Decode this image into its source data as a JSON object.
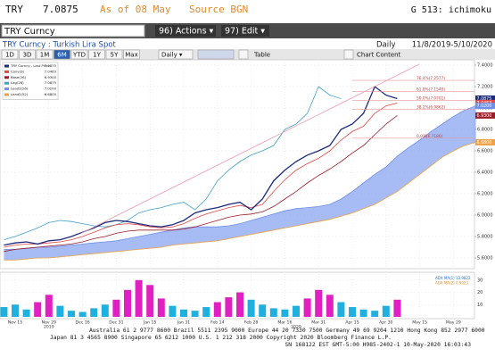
{
  "header": {
    "ticker": "TRY",
    "price": "7.0875",
    "asof": "As of 08 May",
    "source": "Source BGN",
    "function": "G 513: ichimoku"
  },
  "toolbar": {
    "security": "TRY Curncy",
    "actions": "96) Actions ▾",
    "edit": "97) Edit ▾",
    "description": "TRY Curncy : Turkish Lira Spot",
    "frequency": "Daily",
    "range": "11/8/2019-5/10/2020",
    "periods": [
      "1D",
      "3D",
      "1M",
      "6M",
      "YTD",
      "1Y",
      "5Y",
      "Max"
    ],
    "selected": 3,
    "interval": "Daily ▾",
    "table": "Table",
    "content": "Chart Content"
  },
  "chart_data": [
    {
      "type": "line",
      "categories": [
        null,
        "Nov 15",
        null,
        null,
        "Nov 29",
        null,
        null,
        "Dec 16",
        null,
        null,
        "Dec 31",
        null,
        null,
        "Jan 15",
        null,
        null,
        "Jan 31",
        null,
        null,
        "Feb 14",
        null,
        null,
        "Feb 28",
        null,
        null,
        "Mar 16",
        null,
        null,
        "Mar 31",
        null,
        null,
        "Apr 15",
        null,
        null,
        "Apr 30",
        null,
        null,
        "May 15",
        null,
        null,
        "May 29",
        null,
        null
      ],
      "years": [
        "2019",
        "2020"
      ],
      "ylim": [
        5.5,
        7.45
      ],
      "yticks": [
        {
          "value": 5.6,
          "label": "5.6000"
        },
        {
          "value": 5.8,
          "label": "5.8000"
        },
        {
          "value": 6,
          "label": "6.0000"
        },
        {
          "value": 6.2,
          "label": "6.2000"
        },
        {
          "value": 6.4,
          "label": "6.4000"
        },
        {
          "value": 6.6,
          "label": "6.6000"
        },
        {
          "value": 6.8,
          "label": "6.8000"
        },
        {
          "value": 7,
          "label": "7.0000"
        },
        {
          "value": 7.2,
          "label": "7.2000"
        },
        {
          "value": 7.4,
          "label": "7.4000"
        }
      ],
      "grid": true,
      "series": [
        {
          "name": "TRY Curncy - Last Price",
          "last_label": "7.0875",
          "color": "#1c2a7a",
          "values": [
            5.72,
            5.74,
            5.75,
            5.73,
            5.76,
            5.77,
            5.8,
            5.84,
            5.88,
            5.93,
            5.95,
            5.94,
            5.92,
            5.9,
            5.89,
            5.91,
            5.95,
            6.02,
            6.05,
            6.07,
            6.1,
            6.12,
            6.05,
            6.15,
            6.32,
            6.42,
            6.5,
            6.56,
            6.6,
            6.65,
            6.8,
            6.85,
            6.95,
            7.2,
            7.12,
            7.0875,
            null,
            null,
            null,
            null,
            null,
            null,
            null
          ]
        },
        {
          "name": "Conv(9)",
          "last_label": "7.0463",
          "color": "#e04848",
          "values": [
            5.7,
            5.72,
            5.73,
            5.73,
            5.74,
            5.75,
            5.77,
            5.8,
            5.84,
            5.88,
            5.91,
            5.92,
            5.91,
            5.89,
            5.88,
            5.89,
            5.92,
            5.97,
            6.01,
            6.04,
            6.07,
            6.09,
            6.07,
            6.1,
            6.22,
            6.33,
            6.42,
            6.48,
            6.53,
            6.6,
            6.7,
            6.78,
            6.83,
            6.95,
            7.02,
            7.0463,
            null,
            null,
            null,
            null,
            null,
            null,
            null
          ]
        },
        {
          "name": "Base(26)",
          "last_label": "6.9300",
          "color": "#9c1c28",
          "values": [
            5.66,
            5.68,
            5.69,
            5.7,
            5.71,
            5.72,
            5.73,
            5.75,
            5.78,
            5.8,
            5.83,
            5.85,
            5.86,
            5.86,
            5.86,
            5.86,
            5.87,
            5.89,
            5.92,
            5.95,
            5.98,
            6.0,
            6.01,
            6.03,
            6.08,
            6.15,
            6.22,
            6.3,
            6.37,
            6.43,
            6.5,
            6.58,
            6.65,
            6.75,
            6.85,
            6.93,
            null,
            null,
            null,
            null,
            null,
            null,
            null
          ]
        },
        {
          "name": "Lag(26)",
          "last_label": "7.0875",
          "color": "#3fa0c8",
          "values": [
            5.77,
            5.8,
            5.84,
            5.88,
            5.93,
            5.95,
            5.94,
            5.92,
            5.9,
            5.89,
            5.91,
            5.95,
            6.02,
            6.05,
            6.07,
            6.1,
            6.12,
            6.05,
            6.15,
            6.32,
            6.42,
            6.5,
            6.56,
            6.6,
            6.65,
            6.8,
            6.85,
            6.95,
            7.2,
            7.12,
            7.0875,
            null,
            null,
            null,
            null,
            null,
            null,
            null,
            null,
            null,
            null,
            null,
            null
          ]
        },
        {
          "name": "Lead1(26)",
          "last_label": "7.0200",
          "color": "#6f8fe8",
          "values": [
            5.68,
            5.68,
            5.69,
            5.7,
            5.7,
            5.71,
            5.72,
            5.73,
            5.74,
            5.75,
            5.76,
            5.78,
            5.8,
            5.82,
            5.84,
            5.86,
            5.88,
            5.89,
            5.89,
            5.89,
            5.9,
            5.92,
            5.95,
            5.98,
            6.01,
            6.04,
            6.06,
            6.07,
            6.08,
            6.1,
            6.15,
            6.22,
            6.3,
            6.38,
            6.45,
            6.55,
            6.63,
            6.7,
            6.78,
            6.85,
            6.92,
            6.98,
            7.02
          ]
        },
        {
          "name": "Lead2(52)",
          "last_label": "6.6800",
          "color": "#f0a040",
          "values": [
            5.58,
            5.58,
            5.59,
            5.6,
            5.6,
            5.61,
            5.62,
            5.63,
            5.64,
            5.65,
            5.66,
            5.67,
            5.68,
            5.69,
            5.7,
            5.72,
            5.73,
            5.74,
            5.75,
            5.76,
            5.78,
            5.8,
            5.82,
            5.84,
            5.86,
            5.88,
            5.9,
            5.92,
            5.94,
            5.96,
            5.99,
            6.02,
            6.06,
            6.1,
            6.16,
            6.22,
            6.3,
            6.38,
            6.46,
            6.54,
            6.6,
            6.65,
            6.68
          ]
        }
      ],
      "cloud_color": "#8aa6f2",
      "levels": [
        {
          "label": "76.4%(7.2577)",
          "value": 7.2577
        },
        {
          "label": "61.8%(7.1540)",
          "value": 7.154
        },
        {
          "label": "50.0%(7.0701)",
          "value": 7.0701
        },
        {
          "label": "38.2%(6.9862)",
          "value": 6.9862
        },
        {
          "label": "0.0%(6.7180)",
          "value": 6.718
        }
      ],
      "level_color": "#e89898"
    },
    {
      "type": "bar",
      "legend": [
        "ADX MA(1) 13.9822",
        "ADX MA(2) 0.9923"
      ],
      "ylim": [
        0,
        35
      ],
      "yticks": [
        10,
        20,
        30
      ],
      "values": [
        8,
        10,
        6,
        12,
        18,
        9,
        5,
        4,
        7,
        10,
        14,
        22,
        30,
        26,
        15,
        9,
        6,
        5,
        8,
        12,
        16,
        20,
        14,
        10,
        7,
        6,
        9,
        15,
        22,
        18,
        12,
        8,
        6,
        5,
        9,
        14
      ],
      "colors": [
        "#20b0e0",
        "#20b0e0",
        "#20b0e0",
        "#e020c0",
        "#e020c0",
        "#20b0e0",
        "#20b0e0",
        "#20b0e0",
        "#20b0e0",
        "#20b0e0",
        "#e020c0",
        "#e020c0",
        "#e020c0",
        "#e020c0",
        "#e020c0",
        "#20b0e0",
        "#20b0e0",
        "#20b0e0",
        "#20b0e0",
        "#e020c0",
        "#e020c0",
        "#e020c0",
        "#20b0e0",
        "#20b0e0",
        "#20b0e0",
        "#20b0e0",
        "#20b0e0",
        "#e020c0",
        "#e020c0",
        "#e020c0",
        "#20b0e0",
        "#20b0e0",
        "#20b0e0",
        "#20b0e0",
        "#20b0e0",
        "#e020c0"
      ]
    }
  ],
  "footer": {
    "lines": [
      "Australia 61 2 9777 8600 Brazil 5511 2395 9000 Europe 44 20 7330 7500 Germany 49 69 9204 1210 Hong Kong 852 2977 6000",
      "Japan 81 3 4565 8900       Singapore 65 6212 1000      U.S. 1 212 318 2000       Copyright 2020 Bloomberg Finance L.P.",
      "SN 168122 EST  GMT-5:00 H985-2402-1 10-May-2020 16:03:43"
    ]
  }
}
